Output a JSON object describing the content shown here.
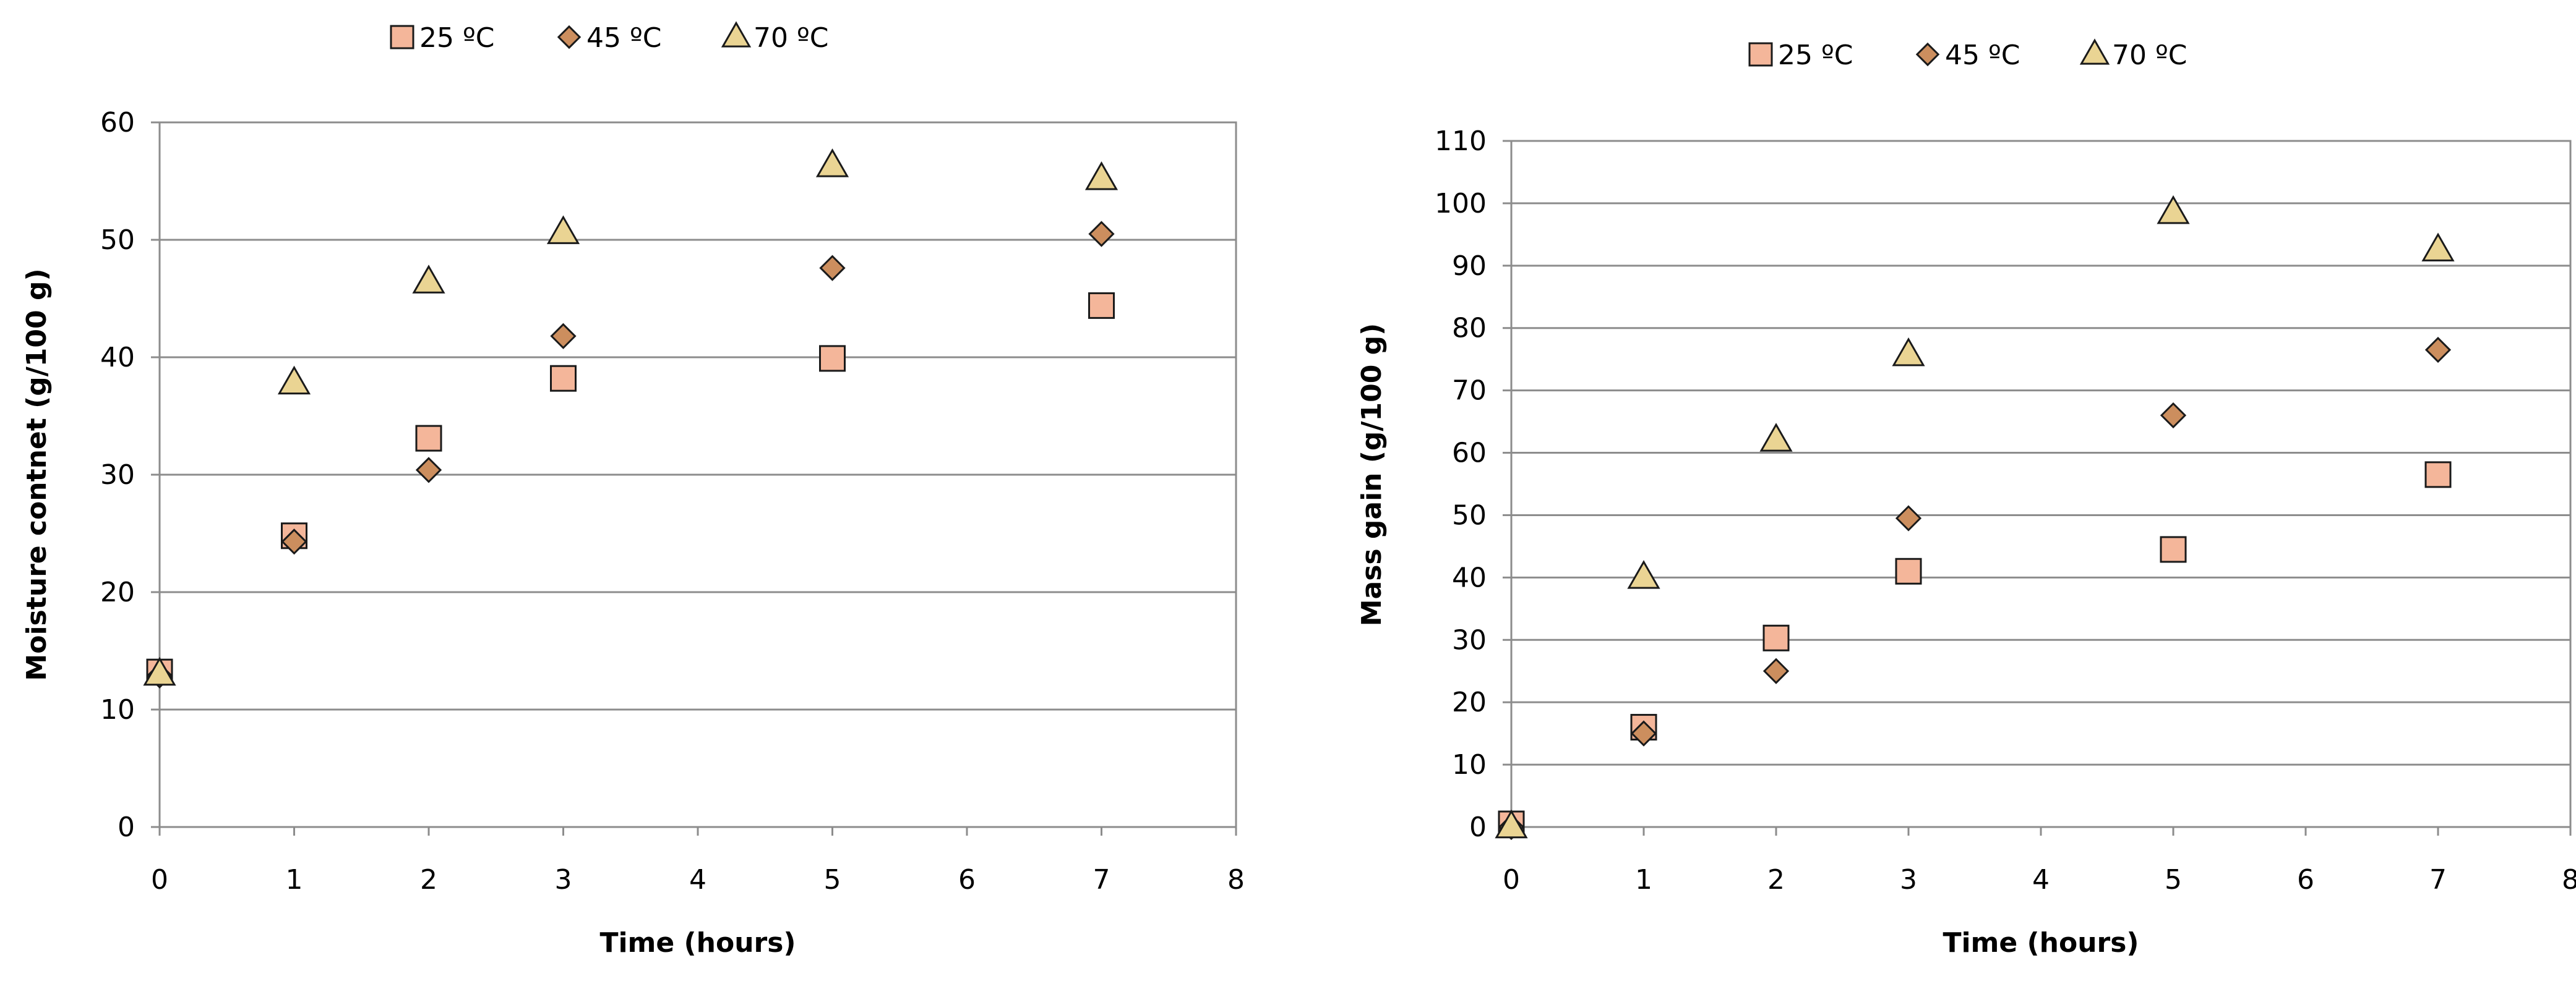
{
  "colors": {
    "square_fill": "#F4B69A",
    "diamond_fill": "#CC8E5E",
    "triangle_fill": "#EAD493",
    "marker_stroke": "#1a1a1a",
    "gridline": "#8c8c8c",
    "axis": "#8c8c8c"
  },
  "chart_data": [
    {
      "type": "scatter",
      "title": "",
      "xlabel": "Time (hours)",
      "ylabel": "Moisture contnet (g/100 g)",
      "xlim": [
        0,
        8
      ],
      "ylim": [
        0,
        60
      ],
      "xticks": [
        0,
        1,
        2,
        3,
        4,
        5,
        6,
        7,
        8
      ],
      "yticks": [
        0,
        10,
        20,
        30,
        40,
        50,
        60
      ],
      "grid": "horizontal",
      "legend_position": "top",
      "series": [
        {
          "name": "25 ºC",
          "marker": "square",
          "x": [
            0,
            1,
            2,
            3,
            5,
            7
          ],
          "y": [
            13.2,
            24.8,
            33.1,
            38.2,
            39.9,
            44.4
          ]
        },
        {
          "name": "45 ºC",
          "marker": "diamond",
          "x": [
            0,
            1,
            2,
            3,
            5,
            7
          ],
          "y": [
            12.9,
            24.3,
            30.4,
            41.8,
            47.6,
            50.5
          ]
        },
        {
          "name": "70 ºC",
          "marker": "triangle",
          "x": [
            0,
            1,
            2,
            3,
            5,
            7
          ],
          "y": [
            13.0,
            37.8,
            46.4,
            50.6,
            56.3,
            55.2
          ]
        }
      ]
    },
    {
      "type": "scatter",
      "title": "",
      "xlabel": "Time (hours)",
      "ylabel": "Mass  gain  (g/100 g)",
      "xlim": [
        0,
        8
      ],
      "ylim": [
        0,
        110
      ],
      "xticks": [
        0,
        1,
        2,
        3,
        4,
        5,
        6,
        7,
        8
      ],
      "yticks": [
        0,
        10,
        20,
        30,
        40,
        50,
        60,
        70,
        80,
        90,
        100,
        110
      ],
      "grid": "horizontal",
      "legend_position": "top",
      "series": [
        {
          "name": "25 ºC",
          "marker": "square",
          "x": [
            0,
            1,
            2,
            3,
            5,
            7
          ],
          "y": [
            0.5,
            16.0,
            30.3,
            41.0,
            44.5,
            56.5
          ]
        },
        {
          "name": "45 ºC",
          "marker": "diamond",
          "x": [
            0,
            1,
            2,
            3,
            5,
            7
          ],
          "y": [
            0.0,
            15.0,
            25.0,
            49.5,
            66.0,
            76.5
          ]
        },
        {
          "name": "70 ºC",
          "marker": "triangle",
          "x": [
            0,
            1,
            2,
            3,
            5,
            7
          ],
          "y": [
            0.0,
            40.0,
            62.0,
            75.7,
            98.5,
            92.5
          ]
        }
      ]
    }
  ]
}
